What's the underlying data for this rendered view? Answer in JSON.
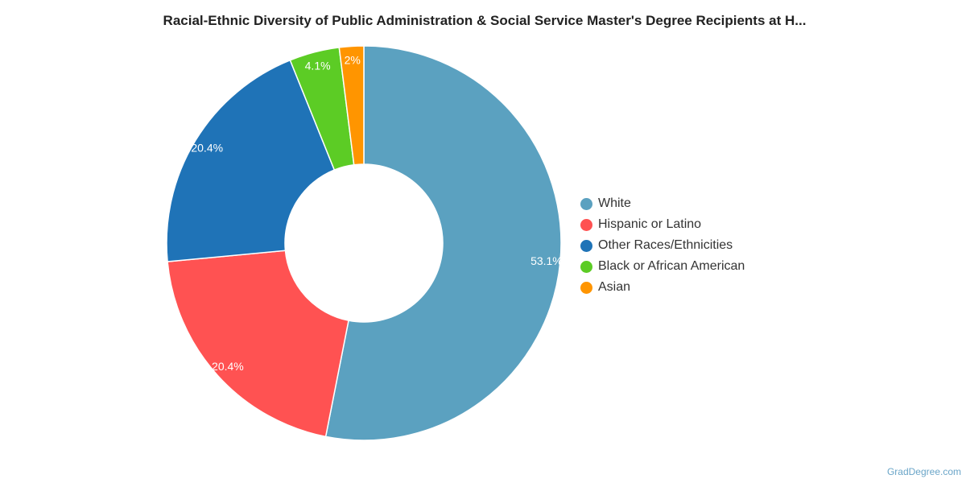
{
  "chart_data": {
    "type": "pie",
    "title": "Racial-Ethnic Diversity of Public Administration & Social Service Master's Degree Recipients at H...",
    "donut": true,
    "legend_position": "right",
    "slices": [
      {
        "label": "White",
        "value": 53.1,
        "display": "53.1%",
        "color": "#5ba1c0"
      },
      {
        "label": "Hispanic or Latino",
        "value": 20.4,
        "display": "20.4%",
        "color": "#ff5252"
      },
      {
        "label": "Other Races/Ethnicities",
        "value": 20.4,
        "display": "20.4%",
        "color": "#1f73b7"
      },
      {
        "label": "Black or African American",
        "value": 4.1,
        "display": "4.1%",
        "color": "#5ccc25"
      },
      {
        "label": "Asian",
        "value": 2.0,
        "display": "2%",
        "color": "#ff9500"
      }
    ]
  },
  "watermark": "GradDegree.com"
}
